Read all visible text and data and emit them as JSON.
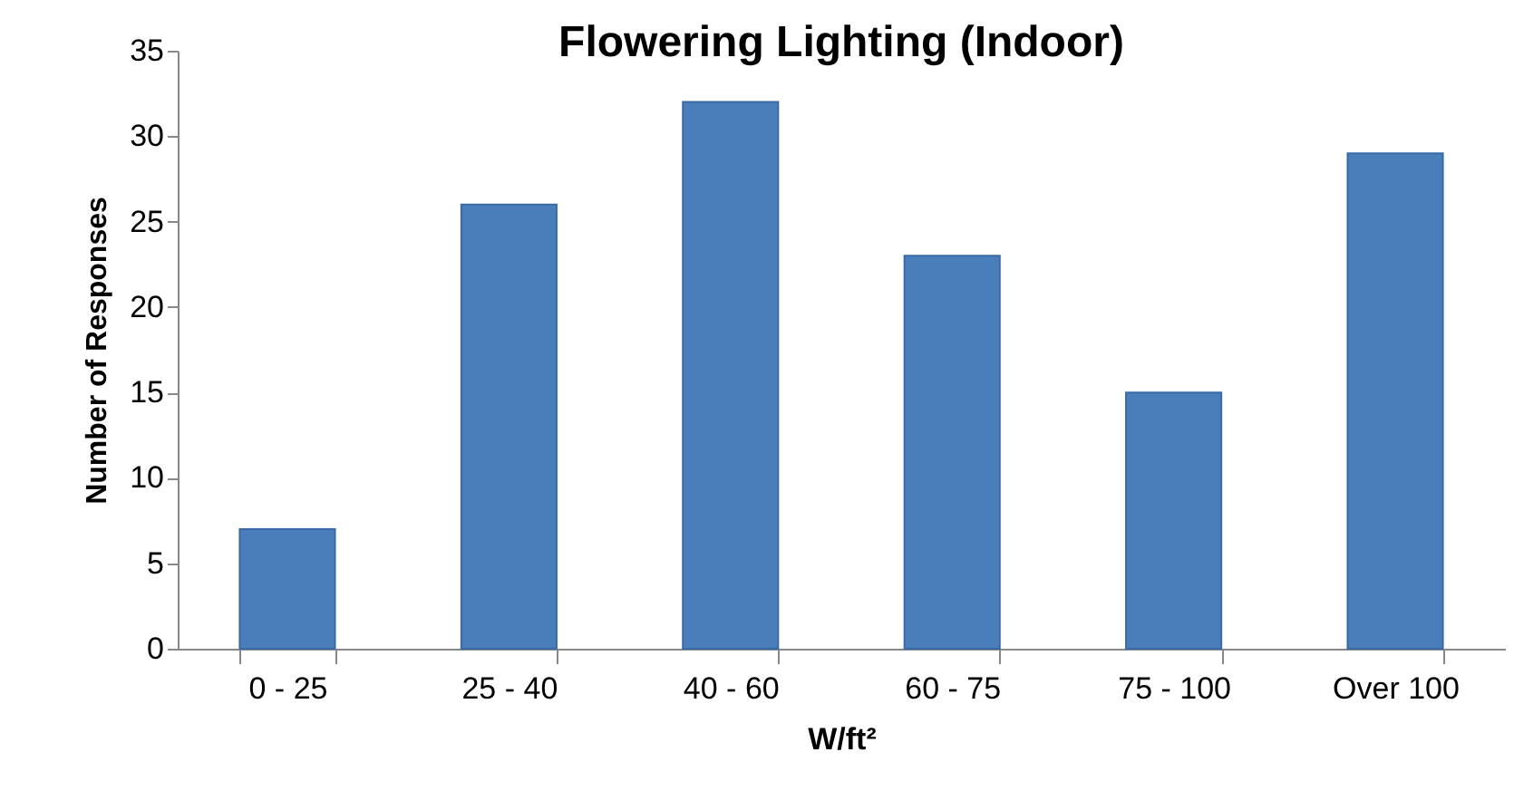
{
  "chart_data": {
    "type": "bar",
    "title": "Flowering Lighting (Indoor)",
    "xlabel": "W/ft²",
    "ylabel": "Number of Responses",
    "categories": [
      "0 - 25",
      "25 - 40",
      "40 - 60",
      "60 - 75",
      "75 - 100",
      "Over 100"
    ],
    "values": [
      7,
      26,
      32,
      23,
      15,
      29
    ],
    "color": "#4a7ebb",
    "ylim": [
      0,
      35
    ],
    "yticks": [
      0,
      5,
      10,
      15,
      20,
      25,
      30,
      35
    ],
    "grid": false
  }
}
